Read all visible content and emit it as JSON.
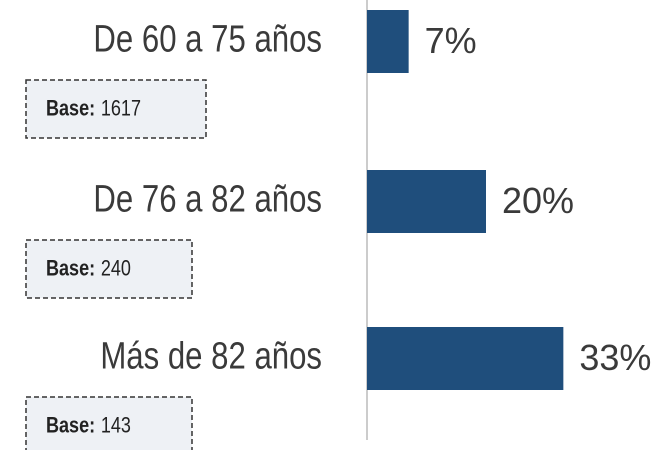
{
  "chart_data": {
    "type": "bar",
    "orientation": "horizontal",
    "categories": [
      "De 60 a 75 años",
      "De 76 a 82 años",
      "Más de 82 años"
    ],
    "values": [
      7,
      20,
      33
    ],
    "value_labels": [
      "7%",
      "20%",
      "33%"
    ],
    "color": "#1f4e7c",
    "base_label": "Base:",
    "bases": [
      "1617",
      "240",
      "143"
    ]
  }
}
